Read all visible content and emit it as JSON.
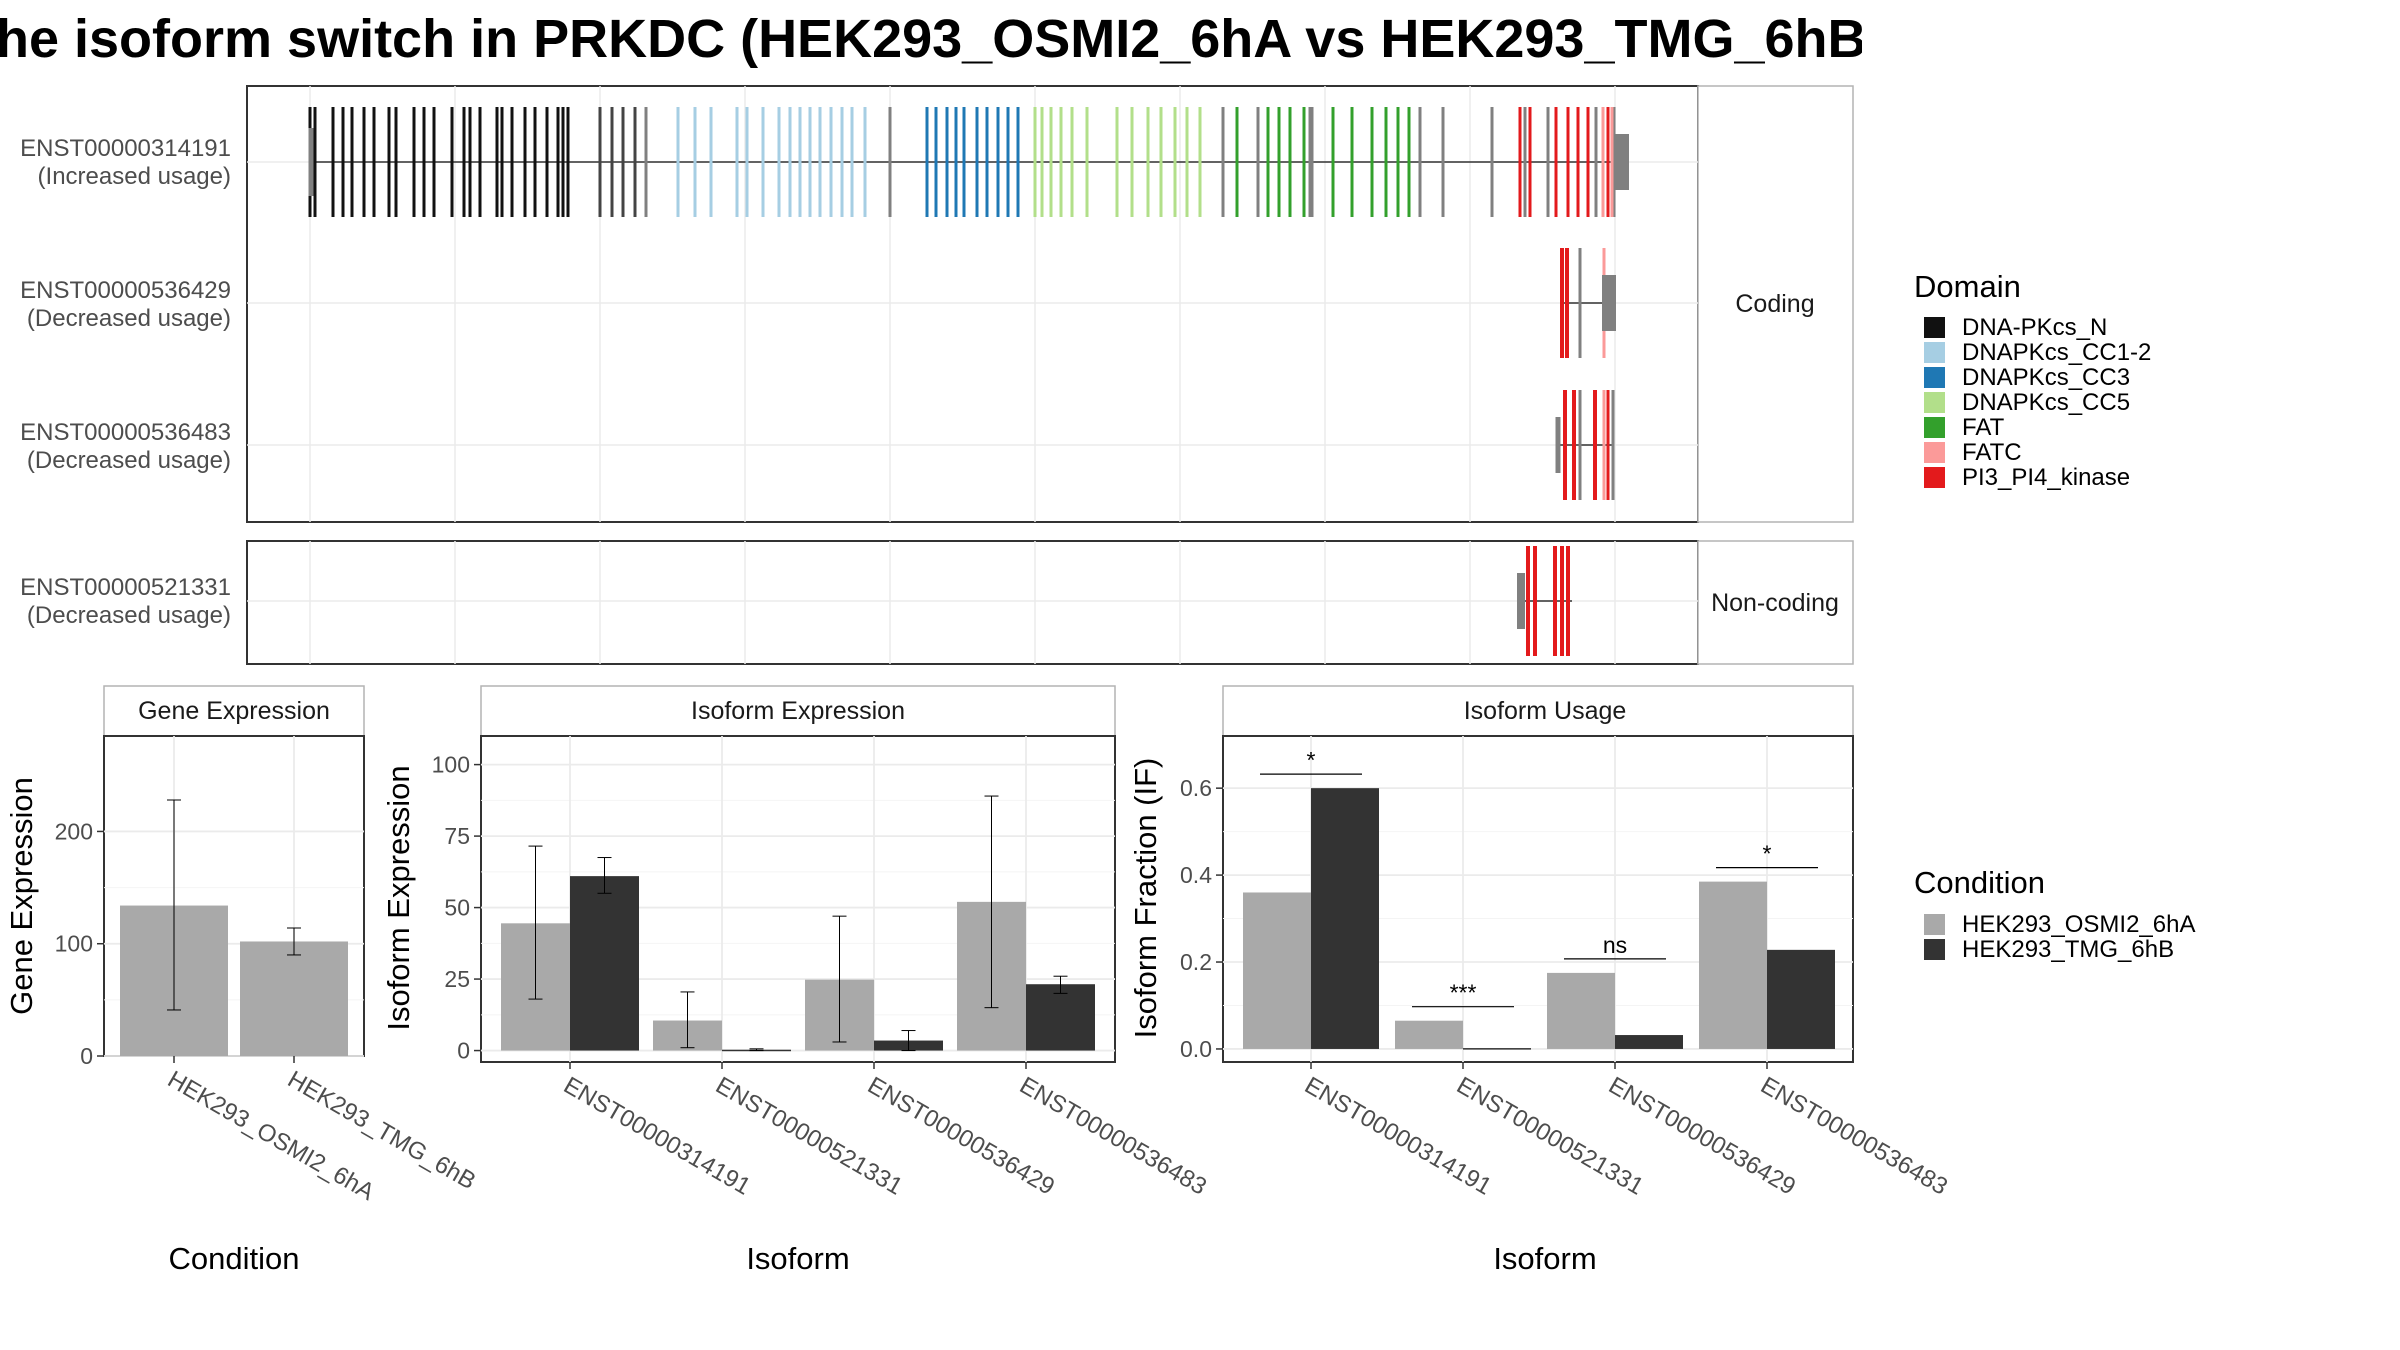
{
  "title": "he isoform switch in PRKDC (HEK293_OSMI2_6hA vs HEK293_TMG_6hB",
  "colors": {
    "DNA-PKcs_N": "#111111",
    "DNAPKcs_CC1-2": "#a6cee3",
    "DNAPKcs_CC3": "#1f78b4",
    "DNAPKcs_CC5": "#b2df8a",
    "FAT": "#33a02c",
    "FATC": "#fb9a99",
    "PI3_PI4_kinase": "#e31a1c",
    "gray_exon": "#808080",
    "cond_a": "#a9a9a9",
    "cond_b": "#333333"
  },
  "structure": {
    "panels": [
      {
        "label": "Coding",
        "transcripts": [
          {
            "id": "ENST00000314191",
            "usage": "(Increased usage)"
          },
          {
            "id": "ENST00000536429",
            "usage": "(Decreased usage)"
          },
          {
            "id": "ENST00000536483",
            "usage": "(Decreased usage)"
          }
        ]
      },
      {
        "label": "Non-coding",
        "transcripts": [
          {
            "id": "ENST00000521331",
            "usage": "(Decreased usage)"
          }
        ]
      }
    ]
  },
  "legend_domain": {
    "title": "Domain",
    "items": [
      "DNA-PKcs_N",
      "DNAPKcs_CC1-2",
      "DNAPKcs_CC3",
      "DNAPKcs_CC5",
      "FAT",
      "FATC",
      "PI3_PI4_kinase"
    ]
  },
  "legend_condition": {
    "title": "Condition",
    "items": [
      "HEK293_OSMI2_6hA",
      "HEK293_TMG_6hB"
    ]
  },
  "chart_data": [
    {
      "type": "bar",
      "title": "Gene Expression",
      "xlabel": "Condition",
      "ylabel": "Gene Expression",
      "categories": [
        "HEK293_OSMI2_6hA",
        "HEK293_TMG_6hB"
      ],
      "values": [
        134,
        102
      ],
      "err_low": [
        41,
        90
      ],
      "err_high": [
        228,
        114
      ],
      "yticks": [
        0,
        100,
        200
      ],
      "ylim": [
        0,
        285
      ]
    },
    {
      "type": "bar",
      "title": "Isoform Expression",
      "xlabel": "Isoform",
      "ylabel": "Isoform Expression",
      "categories": [
        "ENST00000314191",
        "ENST00000521331",
        "ENST00000536429",
        "ENST00000536483"
      ],
      "series": [
        {
          "name": "HEK293_OSMI2_6hA",
          "values": [
            44.5,
            10.5,
            24.8,
            52
          ],
          "err_low": [
            18,
            1,
            3,
            15
          ],
          "err_high": [
            71.5,
            20.5,
            47,
            89
          ]
        },
        {
          "name": "HEK293_TMG_6hB",
          "values": [
            61,
            0.3,
            3.5,
            23.2
          ],
          "err_low": [
            55,
            0,
            0,
            20
          ],
          "err_high": [
            67.5,
            0.6,
            7,
            26
          ]
        }
      ],
      "yticks": [
        0,
        25,
        50,
        75,
        100
      ],
      "ylim": [
        -4,
        110
      ]
    },
    {
      "type": "bar",
      "title": "Isoform Usage",
      "xlabel": "Isoform",
      "ylabel": "Isoform Fraction (IF)",
      "categories": [
        "ENST00000314191",
        "ENST00000521331",
        "ENST00000536429",
        "ENST00000536483"
      ],
      "series": [
        {
          "name": "HEK293_OSMI2_6hA",
          "values": [
            0.36,
            0.065,
            0.175,
            0.385
          ]
        },
        {
          "name": "HEK293_TMG_6hB",
          "values": [
            0.6,
            0.002,
            0.032,
            0.228
          ]
        }
      ],
      "significance": [
        "*",
        "***",
        "ns",
        "*"
      ],
      "yticks": [
        0.0,
        0.2,
        0.4,
        0.6
      ],
      "ylim": [
        -0.03,
        0.72
      ]
    }
  ]
}
